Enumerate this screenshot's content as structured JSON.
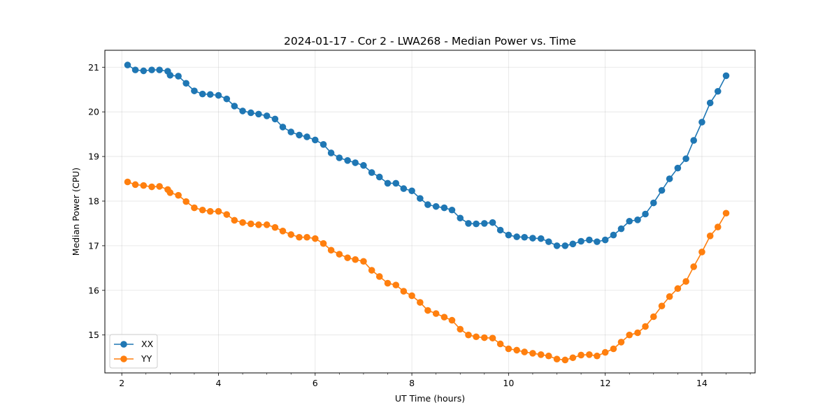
{
  "chart_data": {
    "type": "line",
    "title": "2024-01-17 - Cor 2 - LWA268 - Median Power vs. Time",
    "xlabel": "UT Time (hours)",
    "ylabel": "Median Power (CPU)",
    "xlim": [
      1.65,
      15.1
    ],
    "ylim": [
      14.15,
      21.38
    ],
    "xticks": [
      2,
      4,
      6,
      8,
      10,
      12,
      14
    ],
    "xtick_labels": [
      "2",
      "4",
      "6",
      "8",
      "10",
      "12",
      "14"
    ],
    "xminor_step": 0.5,
    "yticks": [
      15,
      16,
      17,
      18,
      19,
      20,
      21
    ],
    "ytick_labels": [
      "15",
      "16",
      "17",
      "18",
      "19",
      "20",
      "21"
    ],
    "grid": true,
    "legend": "lower-left",
    "x": [
      2.12,
      2.28,
      2.45,
      2.62,
      2.78,
      2.95,
      3.0,
      3.17,
      3.33,
      3.5,
      3.67,
      3.83,
      4.0,
      4.17,
      4.33,
      4.5,
      4.67,
      4.83,
      5.0,
      5.17,
      5.33,
      5.5,
      5.67,
      5.83,
      6.0,
      6.17,
      6.33,
      6.5,
      6.67,
      6.83,
      7.0,
      7.17,
      7.33,
      7.5,
      7.67,
      7.83,
      8.0,
      8.17,
      8.33,
      8.5,
      8.67,
      8.83,
      9.0,
      9.17,
      9.33,
      9.5,
      9.67,
      9.83,
      10.0,
      10.17,
      10.33,
      10.5,
      10.67,
      10.83,
      11.0,
      11.17,
      11.33,
      11.5,
      11.67,
      11.83,
      12.0,
      12.17,
      12.33,
      12.5,
      12.67,
      12.83,
      13.0,
      13.17,
      13.33,
      13.5,
      13.67,
      13.83,
      14.0,
      14.17,
      14.33,
      14.5
    ],
    "series": [
      {
        "name": "XX",
        "color": "#1f77b4",
        "values": [
          21.05,
          20.94,
          20.92,
          20.94,
          20.94,
          20.91,
          20.82,
          20.8,
          20.64,
          20.47,
          20.4,
          20.39,
          20.37,
          20.29,
          20.13,
          20.02,
          19.98,
          19.95,
          19.91,
          19.84,
          19.66,
          19.55,
          19.48,
          19.44,
          19.37,
          19.27,
          19.08,
          18.97,
          18.91,
          18.86,
          18.8,
          18.64,
          18.54,
          18.4,
          18.4,
          18.28,
          18.23,
          18.06,
          17.92,
          17.88,
          17.85,
          17.8,
          17.62,
          17.5,
          17.49,
          17.5,
          17.52,
          17.35,
          17.24,
          17.2,
          17.19,
          17.17,
          17.16,
          17.09,
          17.0,
          17.0,
          17.04,
          17.1,
          17.13,
          17.09,
          17.13,
          17.24,
          17.38,
          17.55,
          17.58,
          17.71,
          17.96,
          18.24,
          18.5,
          18.74,
          18.95,
          19.36,
          19.77,
          20.2,
          20.46,
          20.81
        ]
      },
      {
        "name": "YY",
        "color": "#ff7f0e",
        "values": [
          18.43,
          18.37,
          18.35,
          18.32,
          18.33,
          18.26,
          18.19,
          18.13,
          17.99,
          17.85,
          17.8,
          17.77,
          17.77,
          17.7,
          17.57,
          17.52,
          17.49,
          17.47,
          17.47,
          17.41,
          17.33,
          17.25,
          17.19,
          17.19,
          17.16,
          17.05,
          16.9,
          16.81,
          16.73,
          16.69,
          16.65,
          16.45,
          16.31,
          16.16,
          16.12,
          15.98,
          15.88,
          15.73,
          15.55,
          15.48,
          15.4,
          15.33,
          15.13,
          15.0,
          14.96,
          14.94,
          14.93,
          14.8,
          14.69,
          14.66,
          14.62,
          14.59,
          14.56,
          14.53,
          14.46,
          14.44,
          14.49,
          14.55,
          14.56,
          14.53,
          14.61,
          14.69,
          14.84,
          15.0,
          15.05,
          15.19,
          15.41,
          15.65,
          15.86,
          16.04,
          16.2,
          16.53,
          16.86,
          17.22,
          17.42,
          17.73
        ]
      }
    ]
  }
}
